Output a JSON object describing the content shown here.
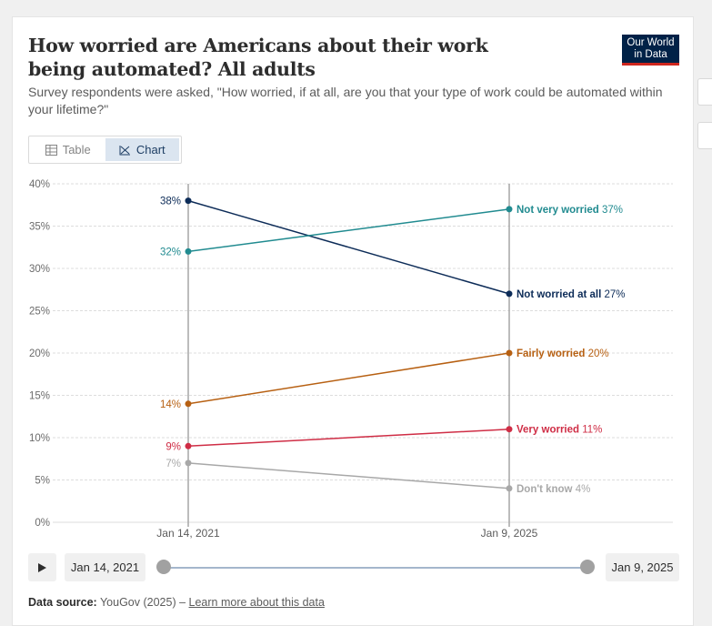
{
  "header": {
    "title": "How worried are Americans about their work being automated? All adults",
    "subtitle": "Survey respondents were asked, \"How worried, if at all, are you that your type of work could be automated within your lifetime?\"",
    "logo_line1": "Our World",
    "logo_line2": "in Data"
  },
  "tabs": {
    "table_label": "Table",
    "chart_label": "Chart",
    "active": "Chart"
  },
  "timeline": {
    "start_label": "Jan 14, 2021",
    "end_label": "Jan 9, 2025"
  },
  "footer": {
    "source_label": "Data source:",
    "source_value": "YouGov (2025)",
    "separator": "–",
    "link_text": "Learn more about this data"
  },
  "colors": {
    "not_at_all": "#0d2c58",
    "not_very": "#218b90",
    "fairly": "#b76012",
    "very": "#cf2d45",
    "dont_know": "#a8a8a8"
  },
  "chart_data": {
    "type": "line",
    "title": "How worried are Americans about their work being automated? All adults",
    "x": [
      "Jan 14, 2021",
      "Jan 9, 2025"
    ],
    "ylim": [
      0,
      40
    ],
    "yticks": [
      0,
      5,
      10,
      15,
      20,
      25,
      30,
      35,
      40
    ],
    "yticklabels": [
      "0%",
      "5%",
      "10%",
      "15%",
      "20%",
      "25%",
      "30%",
      "35%",
      "40%"
    ],
    "grid": true,
    "series": [
      {
        "key": "not_at_all",
        "name": "Not worried at all",
        "values": [
          38,
          27
        ],
        "value_labels": [
          "38%",
          "27%"
        ],
        "color": "#0d2c58"
      },
      {
        "key": "not_very",
        "name": "Not very worried",
        "values": [
          32,
          37
        ],
        "value_labels": [
          "32%",
          "37%"
        ],
        "color": "#218b90"
      },
      {
        "key": "fairly",
        "name": "Fairly worried",
        "values": [
          14,
          20
        ],
        "value_labels": [
          "14%",
          "20%"
        ],
        "color": "#b76012"
      },
      {
        "key": "very",
        "name": "Very worried",
        "values": [
          9,
          11
        ],
        "value_labels": [
          "9%",
          "11%"
        ],
        "color": "#cf2d45"
      },
      {
        "key": "dont_know",
        "name": "Don't know",
        "values": [
          7,
          4
        ],
        "value_labels": [
          "7%",
          "4%"
        ],
        "color": "#a8a8a8"
      }
    ]
  }
}
